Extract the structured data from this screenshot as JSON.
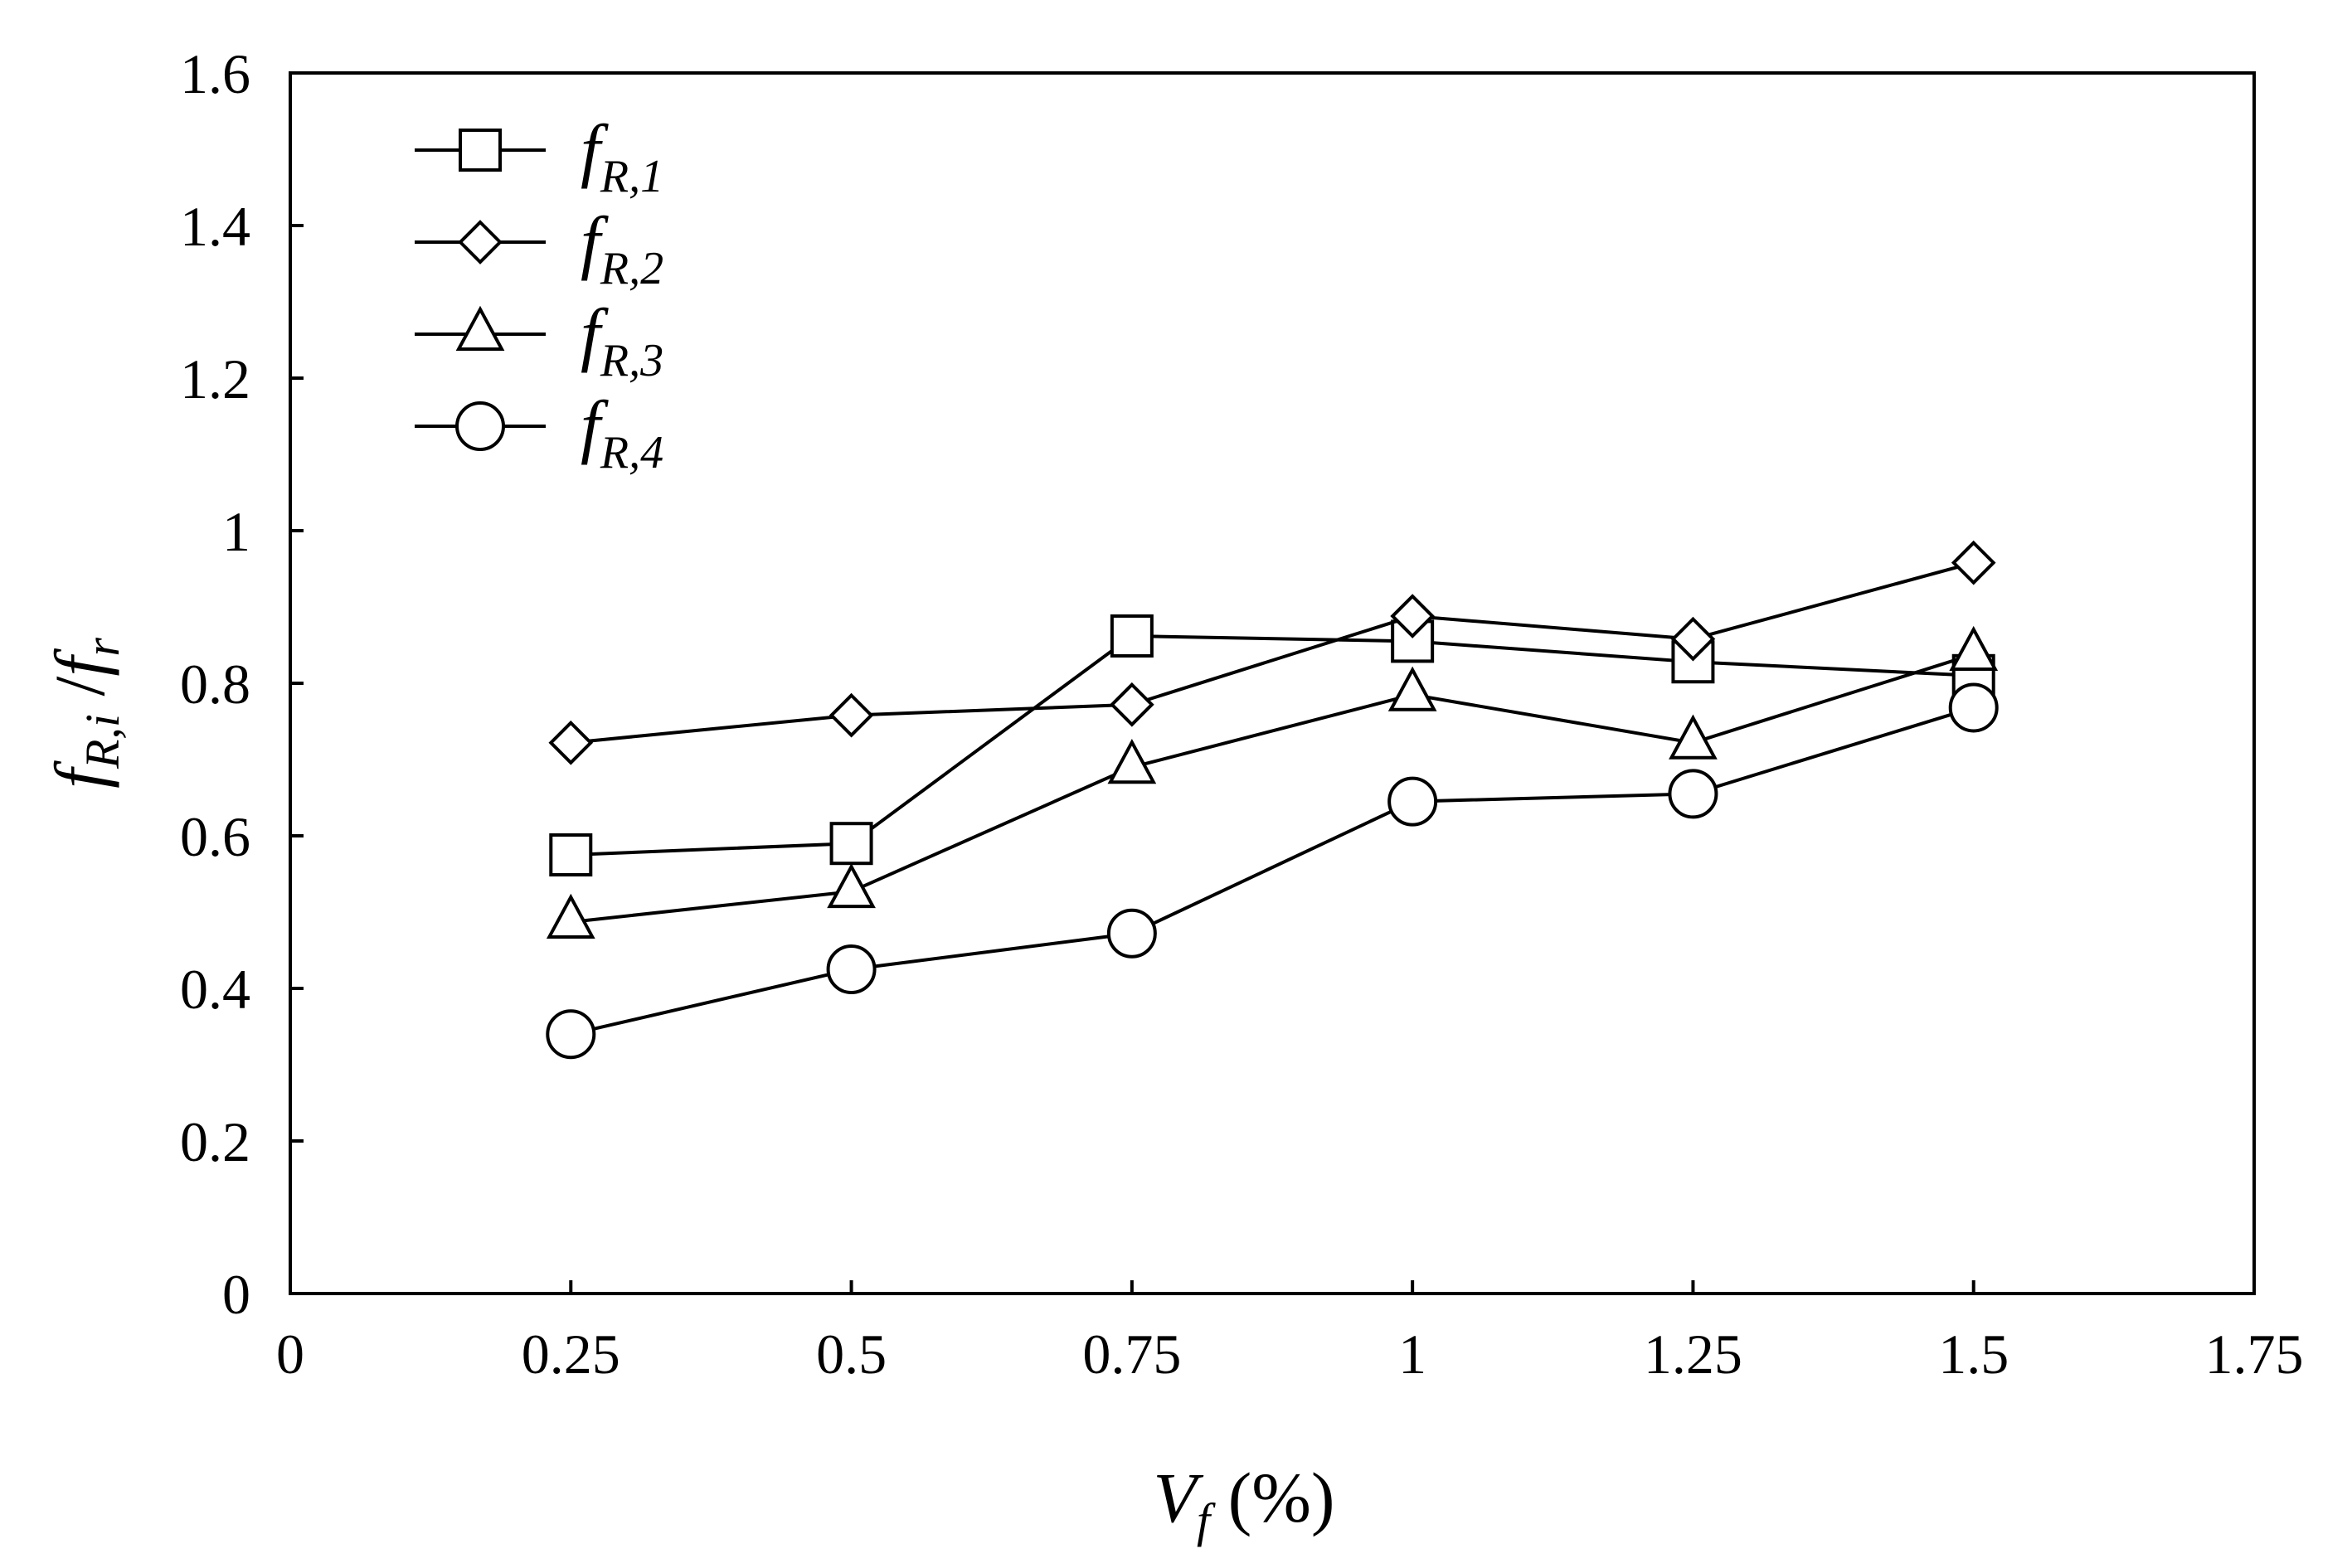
{
  "chart_data": {
    "type": "line",
    "xlabel": {
      "main": "V",
      "sub": "f",
      "tail": " (%)"
    },
    "ylabel": {
      "a": "f",
      "a_sub": "R,i",
      "sep": " /",
      "b": "f",
      "b_sub": "r"
    },
    "xlim": [
      0,
      1.75
    ],
    "ylim": [
      0,
      1.6
    ],
    "xticks": [
      0,
      0.25,
      0.5,
      0.75,
      1,
      1.25,
      1.5,
      1.75
    ],
    "xtick_labels": [
      "0",
      "0.25",
      "0.5",
      "0.75",
      "1",
      "1.25",
      "1.5",
      "1.75"
    ],
    "yticks": [
      0,
      0.2,
      0.4,
      0.6,
      0.8,
      1,
      1.2,
      1.4,
      1.6
    ],
    "ytick_labels": [
      "0",
      "0.2",
      "0.4",
      "0.6",
      "0.8",
      "1",
      "1.2",
      "1.4",
      "1.6"
    ],
    "grid": false,
    "legend_position": "top-left",
    "x": [
      0.25,
      0.5,
      0.75,
      1,
      1.25,
      1.5
    ],
    "series": [
      {
        "name": "f",
        "name_sub": "R,1",
        "marker": "square",
        "values": [
          0.575,
          0.59,
          0.862,
          0.855,
          0.828,
          0.81
        ]
      },
      {
        "name": "f",
        "name_sub": "R,2",
        "marker": "diamond",
        "values": [
          0.722,
          0.758,
          0.772,
          0.888,
          0.858,
          0.958
        ]
      },
      {
        "name": "f",
        "name_sub": "R,3",
        "marker": "triangle",
        "values": [
          0.487,
          0.527,
          0.69,
          0.785,
          0.722,
          0.838
        ]
      },
      {
        "name": "f",
        "name_sub": "R,4",
        "marker": "circle",
        "values": [
          0.34,
          0.425,
          0.472,
          0.645,
          0.655,
          0.768
        ]
      }
    ],
    "line_color": "#000000",
    "marker_fill": "#ffffff"
  }
}
